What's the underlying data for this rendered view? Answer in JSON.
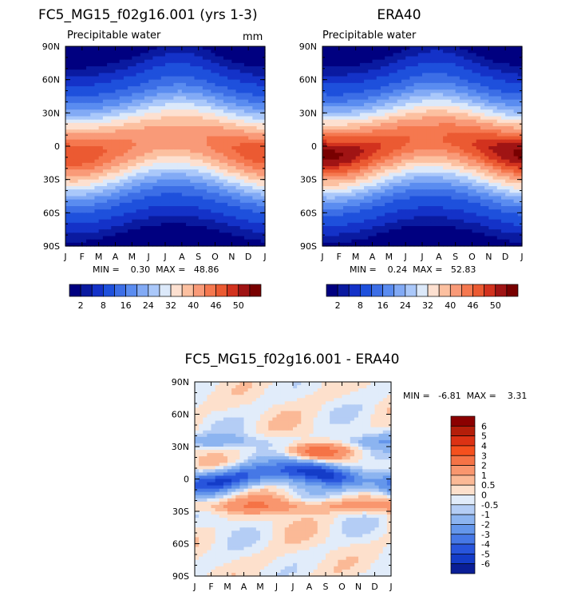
{
  "panels": [
    {
      "title": "FC5_MG15_f02g16.001 (yrs 1-3)",
      "subtitle": "Precipitable water",
      "units": "mm",
      "stats": "MIN =    0.30  MAX =   48.86",
      "peak": 48.86
    },
    {
      "title": "ERA40",
      "subtitle": "Precipitable water",
      "units": "",
      "stats": "MIN =    0.24  MAX =   52.83",
      "peak": 52.83
    }
  ],
  "diff_panel": {
    "title": "FC5_MG15_f02g16.001 - ERA40",
    "stats": "MIN =   -6.81  MAX =    3.31"
  },
  "x_ticks": [
    "J",
    "F",
    "M",
    "A",
    "M",
    "J",
    "J",
    "A",
    "S",
    "O",
    "N",
    "D",
    "J"
  ],
  "y_ticks": [
    "90N",
    "60N",
    "30N",
    "0",
    "30S",
    "60S",
    "90S"
  ],
  "top_colorbar": {
    "labels": [
      "2",
      "8",
      "16",
      "24",
      "32",
      "40",
      "46",
      "50"
    ],
    "colors": [
      "#000080",
      "#0a1aa0",
      "#1432c8",
      "#1e50dc",
      "#3c6ee6",
      "#5a8cf0",
      "#82aaf5",
      "#aac8fa",
      "#dce9fa",
      "#fde0d0",
      "#fcc0a0",
      "#f99a78",
      "#f5784f",
      "#eb5a32",
      "#d2321e",
      "#a01414",
      "#780000"
    ]
  },
  "diff_colorbar": {
    "labels": [
      "6",
      "5",
      "4",
      "3",
      "2",
      "1",
      "0.5",
      "0",
      "-0.5",
      "-1",
      "-2",
      "-3",
      "-4",
      "-5",
      "-6"
    ],
    "colors": [
      "#8b0000",
      "#b41e0a",
      "#dc3214",
      "#f5501e",
      "#f57346",
      "#f9966e",
      "#fbb996",
      "#fde0cc",
      "#e1ecfa",
      "#b4cdf5",
      "#8cb4f0",
      "#6496eb",
      "#4678e6",
      "#2855dc",
      "#143cc8",
      "#0a1e96"
    ]
  },
  "chart_data": [
    {
      "type": "heatmap",
      "title": "FC5_MG15_f02g16.001 (yrs 1-3)",
      "subtitle": "Precipitable water",
      "units": "mm",
      "x": [
        "J",
        "F",
        "M",
        "A",
        "M",
        "J",
        "J",
        "A",
        "S",
        "O",
        "N",
        "D",
        "J"
      ],
      "y": [
        "90N",
        "60N",
        "30N",
        "0",
        "30S",
        "60S",
        "90S"
      ],
      "min": 0.3,
      "max": 48.86,
      "color_levels": [
        2,
        8,
        16,
        24,
        32,
        40,
        46,
        50
      ]
    },
    {
      "type": "heatmap",
      "title": "ERA40",
      "subtitle": "Precipitable water",
      "x": [
        "J",
        "F",
        "M",
        "A",
        "M",
        "J",
        "J",
        "A",
        "S",
        "O",
        "N",
        "D",
        "J"
      ],
      "y": [
        "90N",
        "60N",
        "30N",
        "0",
        "30S",
        "60S",
        "90S"
      ],
      "min": 0.24,
      "max": 52.83,
      "color_levels": [
        2,
        8,
        16,
        24,
        32,
        40,
        46,
        50
      ]
    },
    {
      "type": "heatmap",
      "title": "FC5_MG15_f02g16.001 - ERA40",
      "x": [
        "J",
        "F",
        "M",
        "A",
        "M",
        "J",
        "J",
        "A",
        "S",
        "O",
        "N",
        "D",
        "J"
      ],
      "y": [
        "90N",
        "60N",
        "30N",
        "0",
        "30S",
        "60S",
        "90S"
      ],
      "min": -6.81,
      "max": 3.31,
      "color_levels": [
        -6,
        -5,
        -4,
        -3,
        -2,
        -1,
        -0.5,
        0,
        0.5,
        1,
        2,
        3,
        4,
        5,
        6
      ]
    }
  ]
}
